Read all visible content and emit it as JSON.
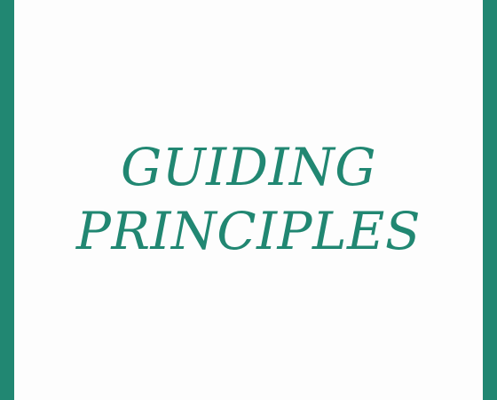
{
  "title": {
    "line1": "GUIDING",
    "line2": "PRINCIPLES"
  },
  "colors": {
    "accent": "#218772",
    "background": "#fdfdfd"
  }
}
